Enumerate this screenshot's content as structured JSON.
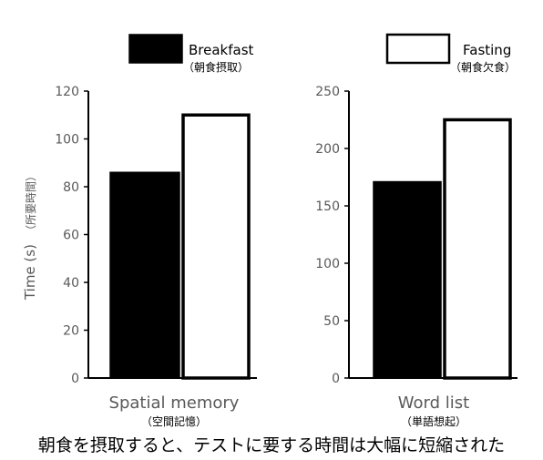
{
  "colors": {
    "breakfast_fill": "#000000",
    "fasting_fill": "#ffffff",
    "bar_stroke": "#000000",
    "axis": "#000000",
    "text_gray": "#595959"
  },
  "legend": {
    "items": [
      {
        "label": "Breakfast",
        "sublabel": "（朝食摂取）",
        "fill": "#000000"
      },
      {
        "label": "Fasting",
        "sublabel": "（朝食欠食）",
        "fill": "#ffffff"
      }
    ]
  },
  "ylabel": "Time (s)",
  "ylabel_sub": "（所要時間）",
  "caption": "朝食を摂取すると、テストに要する時間は大幅に短縮された",
  "chart_data": [
    {
      "type": "bar",
      "categories": [
        "Spatial memory"
      ],
      "category_sublabel": "（空間記憶）",
      "series": [
        {
          "name": "Breakfast",
          "values": [
            86
          ]
        },
        {
          "name": "Fasting",
          "values": [
            110
          ]
        }
      ],
      "ylim": [
        0,
        120
      ],
      "yticks": [
        "0",
        "20",
        "40",
        "60",
        "80",
        "100",
        "120"
      ],
      "ylabel": "Time (s)",
      "legend_position": "top"
    },
    {
      "type": "bar",
      "categories": [
        "Word list"
      ],
      "category_sublabel": "（単語想起）",
      "series": [
        {
          "name": "Breakfast",
          "values": [
            171
          ]
        },
        {
          "name": "Fasting",
          "values": [
            225
          ]
        }
      ],
      "ylim": [
        0,
        250
      ],
      "yticks": [
        "0",
        "50",
        "100",
        "150",
        "200",
        "250"
      ],
      "legend_position": "top"
    }
  ]
}
